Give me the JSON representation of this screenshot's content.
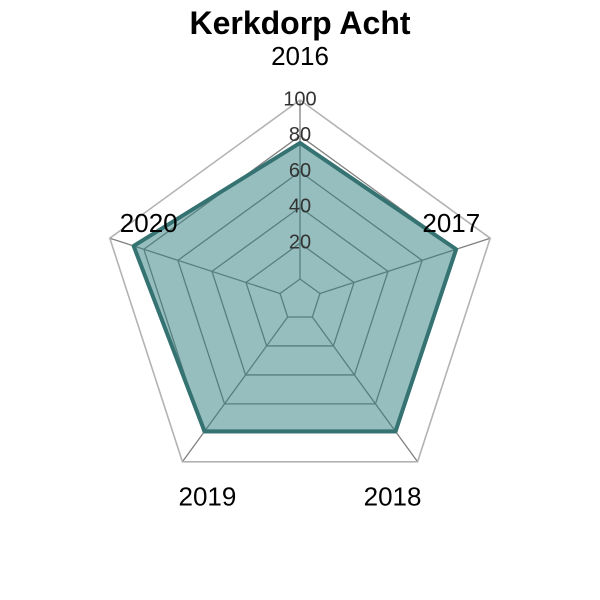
{
  "chart_data": {
    "type": "radar",
    "title": "Kerkdorp Acht",
    "categories": [
      "2016",
      "2017",
      "2018",
      "2019",
      "2020"
    ],
    "series": [
      {
        "values": [
          76,
          80,
          79,
          79,
          86
        ]
      }
    ],
    "rlim": [
      0,
      100
    ],
    "ticks": [
      "20",
      "40",
      "60",
      "80",
      "100"
    ],
    "grid": true,
    "legend": "none",
    "colors": {
      "fill": "#2e7d7d",
      "line": "#357272",
      "grid_inner": "#808080",
      "grid_outer": "#b3b3b3"
    }
  }
}
